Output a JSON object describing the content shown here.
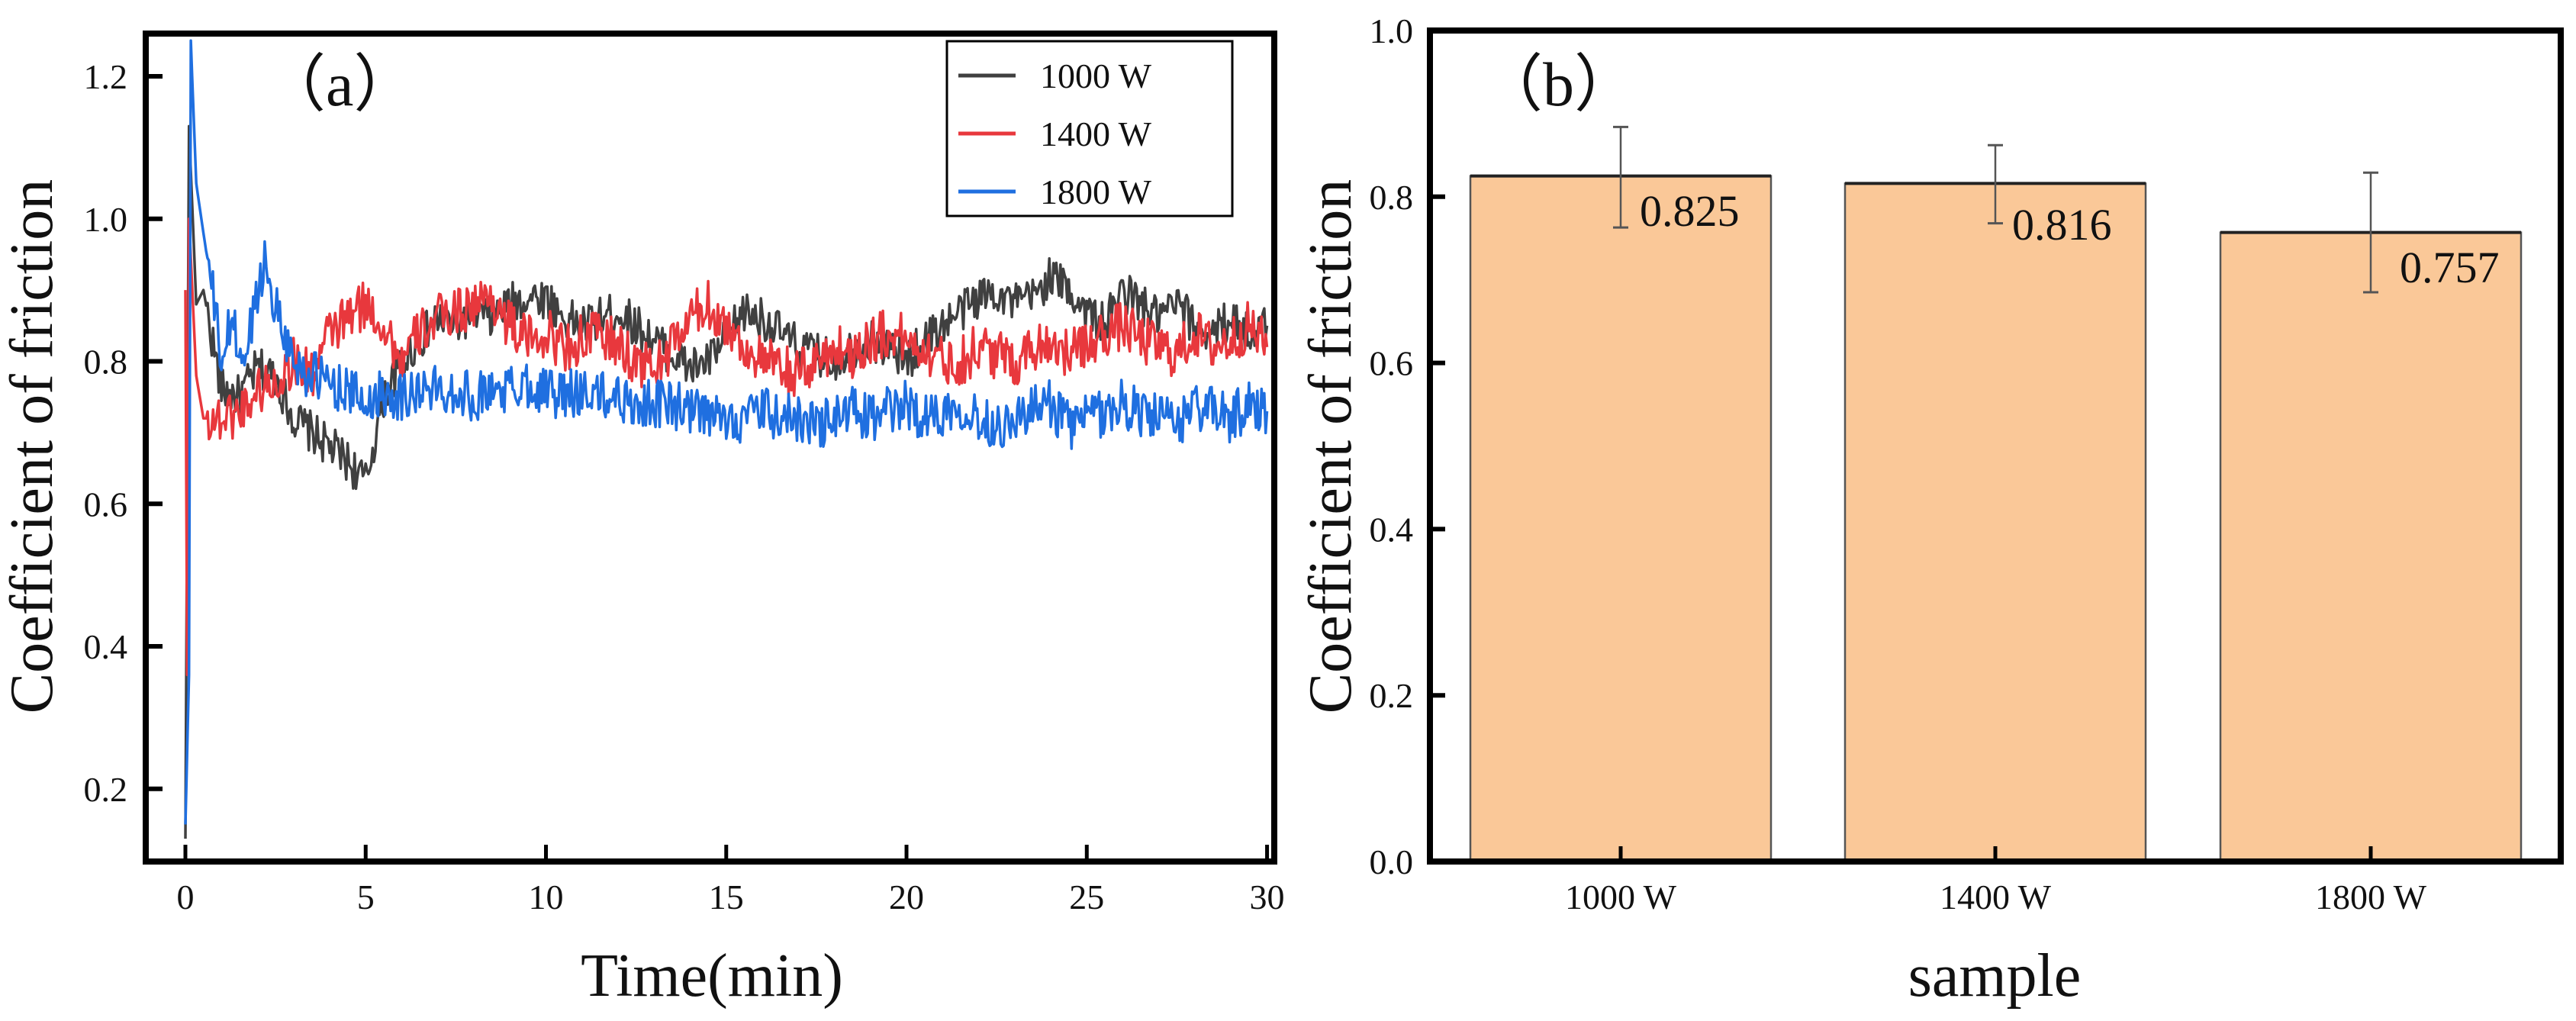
{
  "chart_data": [
    {
      "type": "line",
      "panel_label": "（a）",
      "xlabel": "Time(min)",
      "ylabel": "Coefficient of friction",
      "xlim": [
        -1.1,
        30.2
      ],
      "ylim": [
        0.098,
        1.26
      ],
      "xticks": [
        0,
        5,
        10,
        15,
        20,
        25,
        30
      ],
      "xtick_labels": [
        "0",
        "5",
        "10",
        "15",
        "20",
        "25",
        "30"
      ],
      "yticks": [
        0.2,
        0.4,
        0.6,
        0.8,
        1.0,
        1.2
      ],
      "ytick_labels": [
        "0.2",
        "0.4",
        "0.6",
        "0.8",
        "1.0",
        "1.2"
      ],
      "legend_position": "top-right",
      "grid": false,
      "series": [
        {
          "name": "1000 W",
          "color": "#404040",
          "noise_amplitude": 0.03,
          "x": [
            0,
            0.1,
            0.3,
            0.5,
            1,
            1.5,
            2,
            2.5,
            3,
            3.5,
            4,
            4.5,
            5,
            5.5,
            6,
            6.5,
            7,
            7.5,
            8,
            8.5,
            9,
            9.5,
            10,
            10.5,
            11,
            11.5,
            12,
            12.5,
            13,
            13.5,
            14,
            14.5,
            15,
            15.5,
            16,
            16.5,
            17,
            17.5,
            18,
            18.5,
            19,
            19.5,
            20,
            20.5,
            21,
            21.5,
            22,
            22.5,
            23,
            23.5,
            24,
            24.5,
            25,
            25.5,
            26,
            26.5,
            27,
            27.5,
            28,
            28.5,
            29,
            29.5,
            30
          ],
          "y": [
            0.13,
            1.13,
            0.88,
            0.9,
            0.76,
            0.75,
            0.79,
            0.78,
            0.72,
            0.7,
            0.68,
            0.66,
            0.63,
            0.75,
            0.8,
            0.83,
            0.86,
            0.85,
            0.87,
            0.86,
            0.88,
            0.89,
            0.89,
            0.86,
            0.85,
            0.86,
            0.87,
            0.85,
            0.83,
            0.81,
            0.79,
            0.8,
            0.83,
            0.87,
            0.86,
            0.84,
            0.82,
            0.81,
            0.8,
            0.82,
            0.83,
            0.82,
            0.8,
            0.83,
            0.85,
            0.87,
            0.89,
            0.9,
            0.88,
            0.89,
            0.92,
            0.9,
            0.87,
            0.85,
            0.9,
            0.88,
            0.86,
            0.88,
            0.85,
            0.84,
            0.86,
            0.84,
            0.85
          ]
        },
        {
          "name": "1400 W",
          "color": "#e8383d",
          "noise_amplitude": 0.035,
          "x": [
            0,
            0.05,
            0.1,
            0.3,
            0.5,
            1,
            1.5,
            2,
            2.5,
            3,
            3.5,
            4,
            4.5,
            5,
            5.5,
            6,
            6.5,
            7,
            7.5,
            8,
            8.5,
            9,
            9.5,
            10,
            10.5,
            11,
            11.5,
            12,
            12.5,
            13,
            13.5,
            14,
            14.5,
            15,
            15.5,
            16,
            16.5,
            17,
            17.5,
            18,
            18.5,
            19,
            19.5,
            20,
            20.5,
            21,
            21.5,
            22,
            22.5,
            23,
            23.5,
            24,
            24.5,
            25,
            25.5,
            26,
            26.5,
            27,
            27.5,
            28,
            28.5,
            29,
            29.5,
            30
          ],
          "y": [
            0.9,
            0.36,
            1.0,
            0.78,
            0.72,
            0.72,
            0.73,
            0.76,
            0.77,
            0.8,
            0.78,
            0.84,
            0.86,
            0.88,
            0.85,
            0.8,
            0.84,
            0.86,
            0.87,
            0.88,
            0.89,
            0.85,
            0.83,
            0.84,
            0.82,
            0.83,
            0.84,
            0.82,
            0.8,
            0.79,
            0.82,
            0.86,
            0.88,
            0.85,
            0.82,
            0.8,
            0.79,
            0.78,
            0.8,
            0.82,
            0.81,
            0.83,
            0.84,
            0.83,
            0.82,
            0.8,
            0.8,
            0.82,
            0.81,
            0.8,
            0.82,
            0.83,
            0.81,
            0.82,
            0.84,
            0.85,
            0.83,
            0.82,
            0.81,
            0.84,
            0.82,
            0.83,
            0.85,
            0.82
          ]
        },
        {
          "name": "1800 W",
          "color": "#1f6fe0",
          "noise_amplitude": 0.035,
          "x": [
            0,
            0.1,
            0.15,
            0.3,
            0.5,
            0.8,
            1,
            1.3,
            1.6,
            2,
            2.2,
            2.5,
            3,
            3.5,
            4,
            4.5,
            5,
            5.5,
            6,
            6.5,
            7,
            7.5,
            8,
            8.5,
            9,
            9.5,
            10,
            10.5,
            11,
            11.5,
            12,
            12.5,
            13,
            13.5,
            14,
            14.5,
            15,
            15.5,
            16,
            16.5,
            17,
            17.5,
            18,
            18.5,
            19,
            19.5,
            20,
            20.5,
            21,
            21.5,
            22,
            22.5,
            23,
            23.5,
            24,
            24.5,
            25,
            25.5,
            26,
            26.5,
            27,
            27.5,
            28,
            28.5,
            29,
            29.5,
            30
          ],
          "y": [
            0.15,
            0.36,
            1.25,
            1.05,
            0.98,
            0.88,
            0.8,
            0.86,
            0.79,
            0.9,
            0.94,
            0.88,
            0.8,
            0.78,
            0.77,
            0.76,
            0.74,
            0.76,
            0.75,
            0.76,
            0.76,
            0.76,
            0.75,
            0.76,
            0.76,
            0.77,
            0.76,
            0.75,
            0.76,
            0.75,
            0.75,
            0.74,
            0.74,
            0.74,
            0.73,
            0.72,
            0.72,
            0.72,
            0.73,
            0.72,
            0.72,
            0.71,
            0.72,
            0.73,
            0.72,
            0.73,
            0.74,
            0.72,
            0.73,
            0.74,
            0.72,
            0.71,
            0.72,
            0.73,
            0.74,
            0.71,
            0.72,
            0.73,
            0.74,
            0.73,
            0.72,
            0.71,
            0.74,
            0.73,
            0.72,
            0.74,
            0.73
          ]
        }
      ]
    },
    {
      "type": "bar",
      "panel_label": "（b）",
      "xlabel": "sample",
      "ylabel": "Coefficient of friction",
      "ylim": [
        0,
        1.0
      ],
      "yticks": [
        0.0,
        0.2,
        0.4,
        0.6,
        0.8,
        1.0
      ],
      "ytick_labels": [
        "0.0",
        "0.2",
        "0.4",
        "0.6",
        "0.8",
        "1.0"
      ],
      "categories": [
        "1000 W",
        "1400 W",
        "1800 W"
      ],
      "values": [
        0.825,
        0.816,
        0.757
      ],
      "value_labels": [
        "0.825",
        "0.816",
        "0.757"
      ],
      "error_low": [
        0.763,
        0.768,
        0.685
      ],
      "error_high": [
        0.884,
        0.862,
        0.829
      ],
      "bar_color": "#fac898",
      "grid": false
    }
  ]
}
